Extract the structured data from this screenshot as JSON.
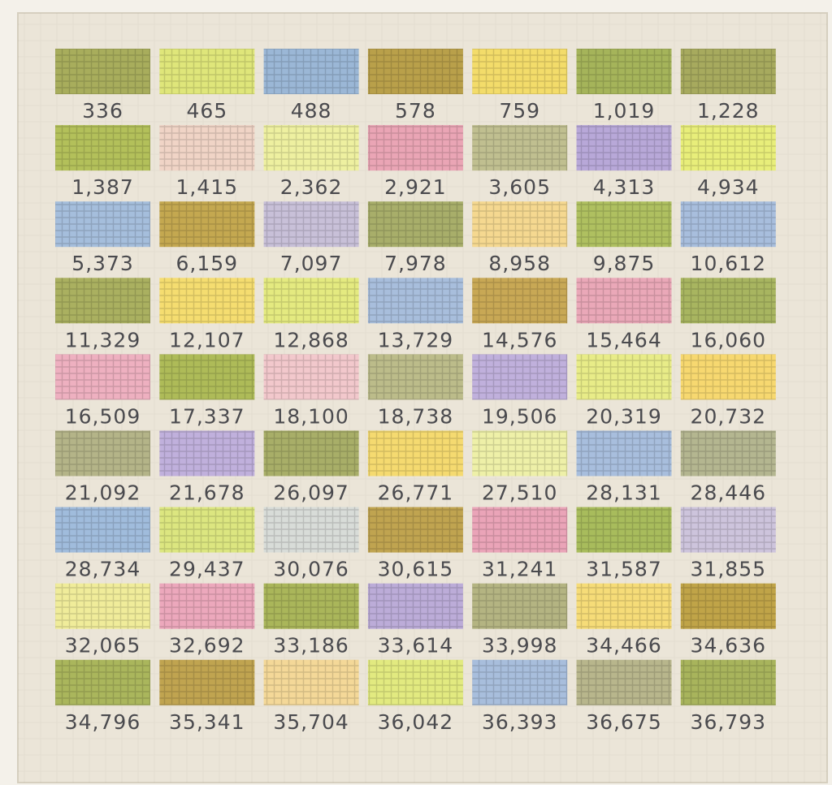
{
  "quilt": {
    "rows": [
      [
        "336",
        "465",
        "488",
        "578",
        "759",
        "1,019",
        "1,228"
      ],
      [
        "1,387",
        "1,415",
        "2,362",
        "2,921",
        "3,605",
        "4,313",
        "4,934"
      ],
      [
        "5,373",
        "6,159",
        "7,097",
        "7,978",
        "8,958",
        "9,875",
        "10,612"
      ],
      [
        "11,329",
        "12,107",
        "12,868",
        "13,729",
        "14,576",
        "15,464",
        "16,060"
      ],
      [
        "16,509",
        "17,337",
        "18,100",
        "18,738",
        "19,506",
        "20,319",
        "20,732"
      ],
      [
        "21,092",
        "21,678",
        "26,097",
        "26,771",
        "27,510",
        "28,131",
        "28,446"
      ],
      [
        "28,734",
        "29,437",
        "30,076",
        "30,615",
        "31,241",
        "31,587",
        "31,855"
      ],
      [
        "32,065",
        "32,692",
        "33,186",
        "33,614",
        "33,998",
        "34,466",
        "34,636"
      ],
      [
        "34,796",
        "35,341",
        "35,704",
        "36,042",
        "36,393",
        "36,675",
        "36,793"
      ]
    ]
  }
}
